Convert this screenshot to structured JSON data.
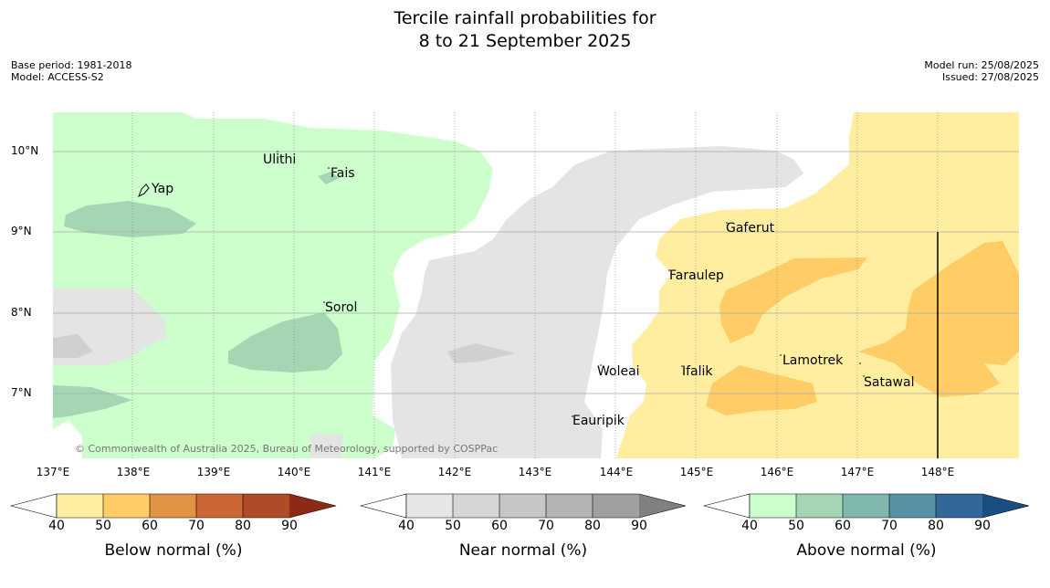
{
  "title_line1": "Tercile rainfall probabilities for",
  "title_line2": "8 to 21 September 2025",
  "base_period": "Base period: 1981-2018",
  "model": "Model: ACCESS-S2",
  "model_run": "Model run: 25/08/2025",
  "issued": "Issued: 27/08/2025",
  "copyright": "© Commonwealth of Australia 2025, Bureau of Meteorology, supported by COSPPac",
  "lat_labels": [
    "10°N",
    "9°N",
    "8°N",
    "7°N"
  ],
  "lon_labels": [
    "137°E",
    "138°E",
    "139°E",
    "140°E",
    "141°E",
    "142°E",
    "143°E",
    "144°E",
    "145°E",
    "146°E",
    "147°E",
    "148°E"
  ],
  "places": {
    "yap": "Yap",
    "ulithi": "Ulithi",
    "fais": "Fais",
    "sorol": "Sorol",
    "gaferut": "Gaferut",
    "faraulep": "Faraulep",
    "woleai": "Woleai",
    "ifalik": "Ifalik",
    "lamotrek": "Lamotrek",
    "satawal": "Satawal",
    "eauripik": "Eauripik"
  },
  "legends": {
    "below": {
      "title": "Below normal (%)",
      "ticks": [
        "40",
        "50",
        "60",
        "70",
        "80",
        "90"
      ],
      "colors": [
        "#ffeea0",
        "#ffcc66",
        "#e09444",
        "#cc6633",
        "#b04a27",
        "#8b2a17"
      ]
    },
    "near": {
      "title": "Near normal (%)",
      "ticks": [
        "40",
        "50",
        "60",
        "70",
        "80",
        "90"
      ],
      "colors": [
        "#e6e6e6",
        "#d6d6d6",
        "#c6c6c6",
        "#b3b3b3",
        "#a0a0a0",
        "#808080"
      ]
    },
    "above": {
      "title": "Above normal (%)",
      "ticks": [
        "40",
        "50",
        "60",
        "70",
        "80",
        "90"
      ],
      "colors": [
        "#ccffcc",
        "#a4d6b4",
        "#80b8b0",
        "#5890a4",
        "#336699",
        "#1a4d80"
      ]
    }
  }
}
